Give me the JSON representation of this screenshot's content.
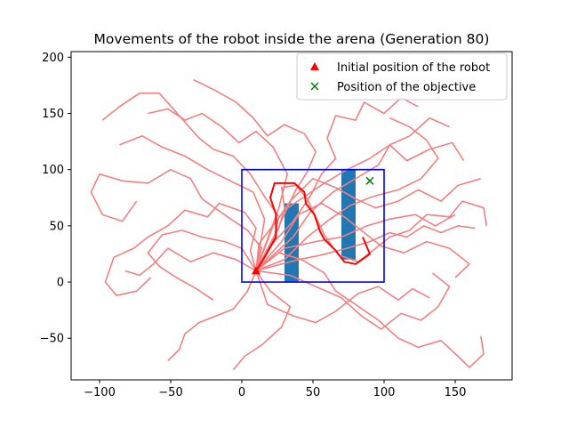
{
  "chart_data": {
    "type": "line",
    "title": "Movements of the robot inside the arena (Generation 80)",
    "xlabel": "",
    "ylabel": "",
    "xlim": [
      -120,
      190
    ],
    "ylim": [
      -87,
      205
    ],
    "xticks": [
      -100,
      -50,
      0,
      50,
      100,
      150
    ],
    "yticks": [
      -50,
      0,
      50,
      100,
      150,
      200
    ],
    "grid": false,
    "legend": {
      "placement": "top-right",
      "entries": [
        {
          "label": "Initial position of the robot",
          "marker": "triangle",
          "color": "#ff0000"
        },
        {
          "label": "Position of the objective",
          "marker": "x",
          "color": "#008000"
        }
      ]
    },
    "arena": {
      "x": [
        0,
        100
      ],
      "y": [
        0,
        100
      ],
      "color": "#0000ff"
    },
    "obstacles": [
      {
        "x": [
          30,
          40
        ],
        "y": [
          0,
          70
        ],
        "color": "#1f77b4"
      },
      {
        "x": [
          70,
          80
        ],
        "y": [
          20,
          100
        ],
        "color": "#1f77b4"
      }
    ],
    "initial_position": {
      "x": 10,
      "y": 10
    },
    "objective_position": {
      "x": 90,
      "y": 90
    },
    "best_path": {
      "color": "#ff0000",
      "points": [
        [
          10,
          10
        ],
        [
          16,
          22
        ],
        [
          24,
          40
        ],
        [
          24,
          60
        ],
        [
          20,
          75
        ],
        [
          23,
          88
        ],
        [
          37,
          88
        ],
        [
          44,
          80
        ],
        [
          45,
          70
        ],
        [
          51,
          60
        ],
        [
          55,
          45
        ],
        [
          58,
          38
        ],
        [
          66,
          28
        ],
        [
          72,
          18
        ],
        [
          80,
          16
        ],
        [
          90,
          25
        ],
        [
          85,
          40
        ]
      ]
    },
    "explored_paths": {
      "color": "#f08080",
      "series": [
        {
          "points": [
            [
              10,
              10
            ],
            [
              18,
              28
            ],
            [
              26,
              48
            ],
            [
              30,
              66
            ],
            [
              28,
              84
            ],
            [
              38,
              86
            ],
            [
              46,
              74
            ],
            [
              52,
              58
            ],
            [
              58,
              42
            ],
            [
              68,
              24
            ],
            [
              82,
              18
            ],
            [
              92,
              28
            ],
            [
              104,
              40
            ],
            [
              118,
              46
            ],
            [
              130,
              60
            ],
            [
              146,
              58
            ],
            [
              155,
              72
            ],
            [
              170,
              66
            ],
            [
              172,
              50
            ]
          ]
        },
        {
          "points": [
            [
              10,
              10
            ],
            [
              6,
              28
            ],
            [
              10,
              48
            ],
            [
              2,
              62
            ],
            [
              -16,
              70
            ],
            [
              -24,
              58
            ],
            [
              -40,
              64
            ],
            [
              -52,
              50
            ],
            [
              -66,
              40
            ],
            [
              -76,
              30
            ],
            [
              -90,
              22
            ],
            [
              -96,
              0
            ],
            [
              -88,
              -12
            ],
            [
              -74,
              -8
            ],
            [
              -64,
              4
            ]
          ]
        },
        {
          "points": [
            [
              10,
              10
            ],
            [
              14,
              30
            ],
            [
              4,
              46
            ],
            [
              -10,
              58
            ],
            [
              -28,
              74
            ],
            [
              -36,
              92
            ],
            [
              -50,
              100
            ],
            [
              -66,
              88
            ],
            [
              -84,
              90
            ],
            [
              -100,
              96
            ],
            [
              -106,
              80
            ],
            [
              -98,
              60
            ],
            [
              -84,
              54
            ],
            [
              -74,
              72
            ]
          ]
        },
        {
          "points": [
            [
              10,
              10
            ],
            [
              22,
              36
            ],
            [
              26,
              58
            ],
            [
              16,
              76
            ],
            [
              6,
              96
            ],
            [
              -6,
              112
            ],
            [
              -20,
              118
            ],
            [
              -30,
              128
            ],
            [
              -44,
              148
            ],
            [
              -58,
              168
            ],
            [
              -72,
              168
            ],
            [
              -86,
              156
            ],
            [
              -98,
              144
            ]
          ]
        },
        {
          "points": [
            [
              10,
              10
            ],
            [
              20,
              32
            ],
            [
              36,
              54
            ],
            [
              48,
              76
            ],
            [
              56,
              96
            ],
            [
              66,
              110
            ],
            [
              60,
              128
            ],
            [
              66,
              148
            ],
            [
              80,
              144
            ],
            [
              86,
              160
            ],
            [
              100,
              150
            ],
            [
              112,
              164
            ],
            [
              124,
              156
            ]
          ]
        },
        {
          "points": [
            [
              10,
              10
            ],
            [
              24,
              44
            ],
            [
              38,
              82
            ],
            [
              46,
              98
            ],
            [
              52,
              116
            ],
            [
              44,
              132
            ],
            [
              30,
              140
            ],
            [
              18,
              130
            ],
            [
              8,
              146
            ],
            [
              -4,
              160
            ],
            [
              -18,
              170
            ],
            [
              -34,
              180
            ]
          ]
        },
        {
          "points": [
            [
              10,
              10
            ],
            [
              26,
              26
            ],
            [
              42,
              20
            ],
            [
              58,
              8
            ],
            [
              66,
              -8
            ],
            [
              80,
              -20
            ],
            [
              96,
              -34
            ],
            [
              110,
              -50
            ],
            [
              124,
              -58
            ],
            [
              140,
              -52
            ],
            [
              152,
              -66
            ],
            [
              160,
              -76
            ],
            [
              170,
              -64
            ],
            [
              168,
              -48
            ]
          ]
        },
        {
          "points": [
            [
              10,
              10
            ],
            [
              4,
              -8
            ],
            [
              -6,
              -24
            ],
            [
              -18,
              -30
            ],
            [
              -30,
              -36
            ],
            [
              -40,
              -46
            ],
            [
              -44,
              -60
            ],
            [
              -52,
              -70
            ]
          ]
        },
        {
          "points": [
            [
              10,
              10
            ],
            [
              20,
              -8
            ],
            [
              34,
              -22
            ],
            [
              28,
              -40
            ],
            [
              14,
              -56
            ],
            [
              2,
              -66
            ],
            [
              -6,
              -78
            ]
          ]
        },
        {
          "points": [
            [
              10,
              10
            ],
            [
              30,
              20
            ],
            [
              46,
              40
            ],
            [
              62,
              56
            ],
            [
              76,
              68
            ],
            [
              92,
              76
            ],
            [
              110,
              82
            ],
            [
              126,
              92
            ],
            [
              138,
              110
            ],
            [
              130,
              126
            ],
            [
              118,
              138
            ],
            [
              104,
              146
            ]
          ]
        },
        {
          "points": [
            [
              10,
              10
            ],
            [
              12,
              34
            ],
            [
              30,
              64
            ],
            [
              44,
              76
            ],
            [
              58,
              88
            ],
            [
              74,
              100
            ],
            [
              90,
              110
            ],
            [
              104,
              122
            ],
            [
              116,
              108
            ],
            [
              132,
              118
            ],
            [
              148,
              124
            ],
            [
              156,
              108
            ]
          ]
        },
        {
          "points": [
            [
              10,
              10
            ],
            [
              -4,
              20
            ],
            [
              -20,
              26
            ],
            [
              -36,
              18
            ],
            [
              -52,
              30
            ],
            [
              -62,
              16
            ],
            [
              -72,
              6
            ],
            [
              -82,
              10
            ]
          ]
        },
        {
          "points": [
            [
              10,
              10
            ],
            [
              34,
              6
            ],
            [
              52,
              -4
            ],
            [
              70,
              -14
            ],
            [
              84,
              -30
            ],
            [
              98,
              -42
            ],
            [
              112,
              -28
            ],
            [
              126,
              -34
            ],
            [
              138,
              -22
            ],
            [
              146,
              -4
            ],
            [
              134,
              8
            ]
          ]
        },
        {
          "points": [
            [
              10,
              10
            ],
            [
              28,
              36
            ],
            [
              40,
              60
            ],
            [
              56,
              70
            ],
            [
              72,
              58
            ],
            [
              86,
              44
            ],
            [
              98,
              32
            ],
            [
              114,
              26
            ],
            [
              130,
              36
            ],
            [
              146,
              30
            ],
            [
              160,
              16
            ],
            [
              150,
              4
            ]
          ]
        },
        {
          "points": [
            [
              10,
              10
            ],
            [
              16,
              56
            ],
            [
              8,
              80
            ],
            [
              -8,
              90
            ],
            [
              -24,
              100
            ],
            [
              -40,
              112
            ],
            [
              -56,
              120
            ],
            [
              -70,
              130
            ],
            [
              -86,
              122
            ]
          ]
        },
        {
          "points": [
            [
              10,
              10
            ],
            [
              22,
              50
            ],
            [
              34,
              72
            ],
            [
              50,
              92
            ],
            [
              66,
              84
            ],
            [
              80,
              74
            ],
            [
              94,
              66
            ],
            [
              110,
              72
            ],
            [
              124,
              82
            ],
            [
              140,
              72
            ],
            [
              152,
              86
            ],
            [
              168,
              92
            ]
          ]
        },
        {
          "points": [
            [
              10,
              10
            ],
            [
              30,
              30
            ],
            [
              52,
              36
            ],
            [
              70,
              40
            ],
            [
              88,
              50
            ],
            [
              104,
              56
            ],
            [
              122,
              60
            ],
            [
              136,
              50
            ],
            [
              150,
              60
            ]
          ]
        },
        {
          "points": [
            [
              10,
              10
            ],
            [
              36,
              40
            ],
            [
              48,
              62
            ],
            [
              64,
              80
            ],
            [
              80,
              92
            ],
            [
              96,
              104
            ],
            [
              104,
              122
            ],
            [
              118,
              130
            ],
            [
              132,
              146
            ],
            [
              146,
              138
            ]
          ]
        },
        {
          "points": [
            [
              10,
              10
            ],
            [
              0,
              30
            ],
            [
              -12,
              36
            ],
            [
              -28,
              40
            ],
            [
              -42,
              46
            ],
            [
              -56,
              42
            ],
            [
              -66,
              26
            ],
            [
              -58,
              14
            ],
            [
              -46,
              4
            ],
            [
              -32,
              -6
            ],
            [
              -20,
              -16
            ]
          ]
        },
        {
          "points": [
            [
              10,
              10
            ],
            [
              18,
              -20
            ],
            [
              36,
              -30
            ],
            [
              52,
              -36
            ],
            [
              66,
              -26
            ],
            [
              82,
              -10
            ],
            [
              96,
              -4
            ],
            [
              110,
              -16
            ],
            [
              120,
              -6
            ],
            [
              132,
              -14
            ]
          ]
        },
        {
          "points": [
            [
              10,
              10
            ],
            [
              40,
              20
            ],
            [
              56,
              24
            ],
            [
              74,
              30
            ],
            [
              90,
              36
            ],
            [
              104,
              44
            ],
            [
              116,
              40
            ],
            [
              128,
              50
            ],
            [
              140,
              44
            ],
            [
              152,
              50
            ],
            [
              164,
              48
            ]
          ]
        },
        {
          "points": [
            [
              10,
              10
            ],
            [
              26,
              66
            ],
            [
              32,
              96
            ],
            [
              22,
              120
            ],
            [
              10,
              134
            ],
            [
              -2,
              124
            ],
            [
              -14,
              138
            ],
            [
              -28,
              150
            ],
            [
              -40,
              144
            ],
            [
              -52,
              154
            ],
            [
              -66,
              150
            ]
          ]
        }
      ]
    }
  }
}
